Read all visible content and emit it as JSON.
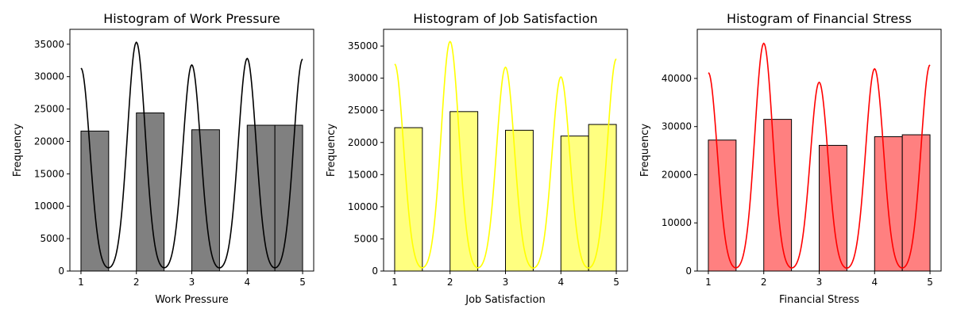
{
  "chart_data": [
    {
      "type": "bar",
      "title": "Histogram of Work Pressure",
      "xlabel": "Work Pressure",
      "ylabel": "Frequency",
      "xlim": [
        0.8,
        5.2
      ],
      "ylim": [
        0,
        37300
      ],
      "xticks": [
        1,
        2,
        3,
        4,
        5
      ],
      "yticks": [
        0,
        5000,
        10000,
        15000,
        20000,
        25000,
        30000,
        35000
      ],
      "bar_color": "#808080",
      "kde_color": "#000000",
      "bins": [
        [
          1,
          1.5
        ],
        [
          1.5,
          2
        ],
        [
          2,
          2.5
        ],
        [
          2.5,
          3
        ],
        [
          3,
          3.5
        ],
        [
          3.5,
          4
        ],
        [
          4,
          4.5
        ],
        [
          4.5,
          5
        ]
      ],
      "values": [
        21600,
        0,
        24400,
        0,
        21800,
        0,
        22500,
        22500
      ],
      "kde_peaks": [
        [
          1,
          31300
        ],
        [
          2,
          35300
        ],
        [
          3,
          31800
        ],
        [
          4,
          32800
        ],
        [
          5,
          32700
        ]
      ]
    },
    {
      "type": "bar",
      "title": "Histogram of Job Satisfaction",
      "xlabel": "Job Satisfaction",
      "ylabel": "Frequency",
      "xlim": [
        0.8,
        5.2
      ],
      "ylim": [
        0,
        37600
      ],
      "xticks": [
        1,
        2,
        3,
        4,
        5
      ],
      "yticks": [
        0,
        5000,
        10000,
        15000,
        20000,
        25000,
        30000,
        35000
      ],
      "bar_color": "#ffff80",
      "kde_color": "#ffff00",
      "bins": [
        [
          1,
          1.5
        ],
        [
          1.5,
          2
        ],
        [
          2,
          2.5
        ],
        [
          2.5,
          3
        ],
        [
          3,
          3.5
        ],
        [
          3.5,
          4
        ],
        [
          4,
          4.5
        ],
        [
          4.5,
          5
        ]
      ],
      "values": [
        22300,
        0,
        24800,
        0,
        21900,
        0,
        21000,
        22800
      ],
      "kde_peaks": [
        [
          1,
          32200
        ],
        [
          2,
          35700
        ],
        [
          3,
          31700
        ],
        [
          4,
          30200
        ],
        [
          5,
          33000
        ]
      ]
    },
    {
      "type": "bar",
      "title": "Histogram of Financial Stress",
      "xlabel": "Financial Stress",
      "ylabel": "Frequency",
      "xlim": [
        0.8,
        5.2
      ],
      "ylim": [
        0,
        50200
      ],
      "xticks": [
        1,
        2,
        3,
        4,
        5
      ],
      "yticks": [
        0,
        10000,
        20000,
        30000,
        40000
      ],
      "bar_color": "#ff8080",
      "kde_color": "#ff0000",
      "bins": [
        [
          1,
          1.5
        ],
        [
          1.5,
          2
        ],
        [
          2,
          2.5
        ],
        [
          2.5,
          3
        ],
        [
          3,
          3.5
        ],
        [
          3.5,
          4
        ],
        [
          4,
          4.5
        ],
        [
          4.5,
          5
        ]
      ],
      "values": [
        27200,
        0,
        31500,
        0,
        26100,
        0,
        27900,
        28300
      ],
      "kde_peaks": [
        [
          1,
          41200
        ],
        [
          2,
          47300
        ],
        [
          3,
          39200
        ],
        [
          4,
          42000
        ],
        [
          5,
          42800
        ]
      ]
    }
  ]
}
